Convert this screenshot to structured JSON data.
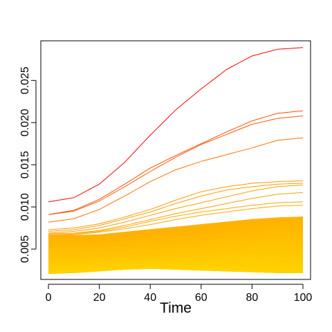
{
  "chart_data": {
    "type": "line",
    "title": "",
    "xlabel": "Time",
    "ylabel": "",
    "xlim": [
      -3,
      103
    ],
    "ylim": [
      0.0014,
      0.0297
    ],
    "xticks": [
      0,
      20,
      40,
      60,
      80,
      100
    ],
    "xtick_labels": [
      "0",
      "20",
      "40",
      "60",
      "80",
      "100"
    ],
    "yticks": [
      0.005,
      0.01,
      0.015,
      0.02,
      0.025
    ],
    "ytick_labels": [
      "0.005",
      "0.010",
      "0.015",
      "0.020",
      "0.025"
    ],
    "grid": false,
    "legend": "none",
    "x": [
      0,
      10,
      20,
      30,
      40,
      50,
      60,
      70,
      80,
      90,
      100
    ],
    "color_scale": {
      "low": "#FFD700",
      "mid": "#FF8C00",
      "high": "#FF0000"
    },
    "highlighted_series": [
      {
        "values": [
          0.0106,
          0.0111,
          0.0127,
          0.0153,
          0.0185,
          0.0215,
          0.024,
          0.0263,
          0.0279,
          0.0287,
          0.0289
        ]
      },
      {
        "values": [
          0.0091,
          0.0096,
          0.0109,
          0.0127,
          0.0146,
          0.0161,
          0.0175,
          0.0189,
          0.0202,
          0.0211,
          0.0214
        ]
      },
      {
        "values": [
          0.0091,
          0.0095,
          0.0107,
          0.0124,
          0.0142,
          0.0159,
          0.0174,
          0.0186,
          0.0198,
          0.0205,
          0.0208
        ]
      },
      {
        "values": [
          0.0082,
          0.0086,
          0.0097,
          0.0113,
          0.013,
          0.0144,
          0.0154,
          0.0162,
          0.017,
          0.0179,
          0.0182
        ]
      },
      {
        "values": [
          0.0073,
          0.0075,
          0.008,
          0.0088,
          0.0097,
          0.0108,
          0.0118,
          0.0124,
          0.0128,
          0.013,
          0.0131
        ]
      },
      {
        "values": [
          0.0071,
          0.0073,
          0.0078,
          0.0086,
          0.0094,
          0.0104,
          0.0113,
          0.012,
          0.0124,
          0.0127,
          0.0128
        ]
      },
      {
        "values": [
          0.0069,
          0.0071,
          0.0075,
          0.0082,
          0.009,
          0.0098,
          0.0105,
          0.0112,
          0.0119,
          0.0124,
          0.0126
        ]
      },
      {
        "values": [
          0.0068,
          0.0069,
          0.0072,
          0.0078,
          0.0085,
          0.0092,
          0.0098,
          0.0104,
          0.011,
          0.0115,
          0.0117
        ]
      },
      {
        "values": [
          0.0067,
          0.0068,
          0.0071,
          0.0076,
          0.0083,
          0.0089,
          0.0094,
          0.0098,
          0.0102,
          0.0105,
          0.0106
        ]
      },
      {
        "values": [
          0.0066,
          0.0067,
          0.007,
          0.0074,
          0.0079,
          0.0085,
          0.009,
          0.0094,
          0.0098,
          0.0101,
          0.0102
        ]
      }
    ],
    "band": {
      "count": 450,
      "lower": [
        0.0021,
        0.0022,
        0.0024,
        0.0026,
        0.0027,
        0.0026,
        0.0025,
        0.0024,
        0.0023,
        0.0022,
        0.0022
      ],
      "upper": [
        0.0066,
        0.0066,
        0.0067,
        0.007,
        0.0073,
        0.0076,
        0.0079,
        0.0082,
        0.0085,
        0.0087,
        0.0088
      ]
    }
  }
}
